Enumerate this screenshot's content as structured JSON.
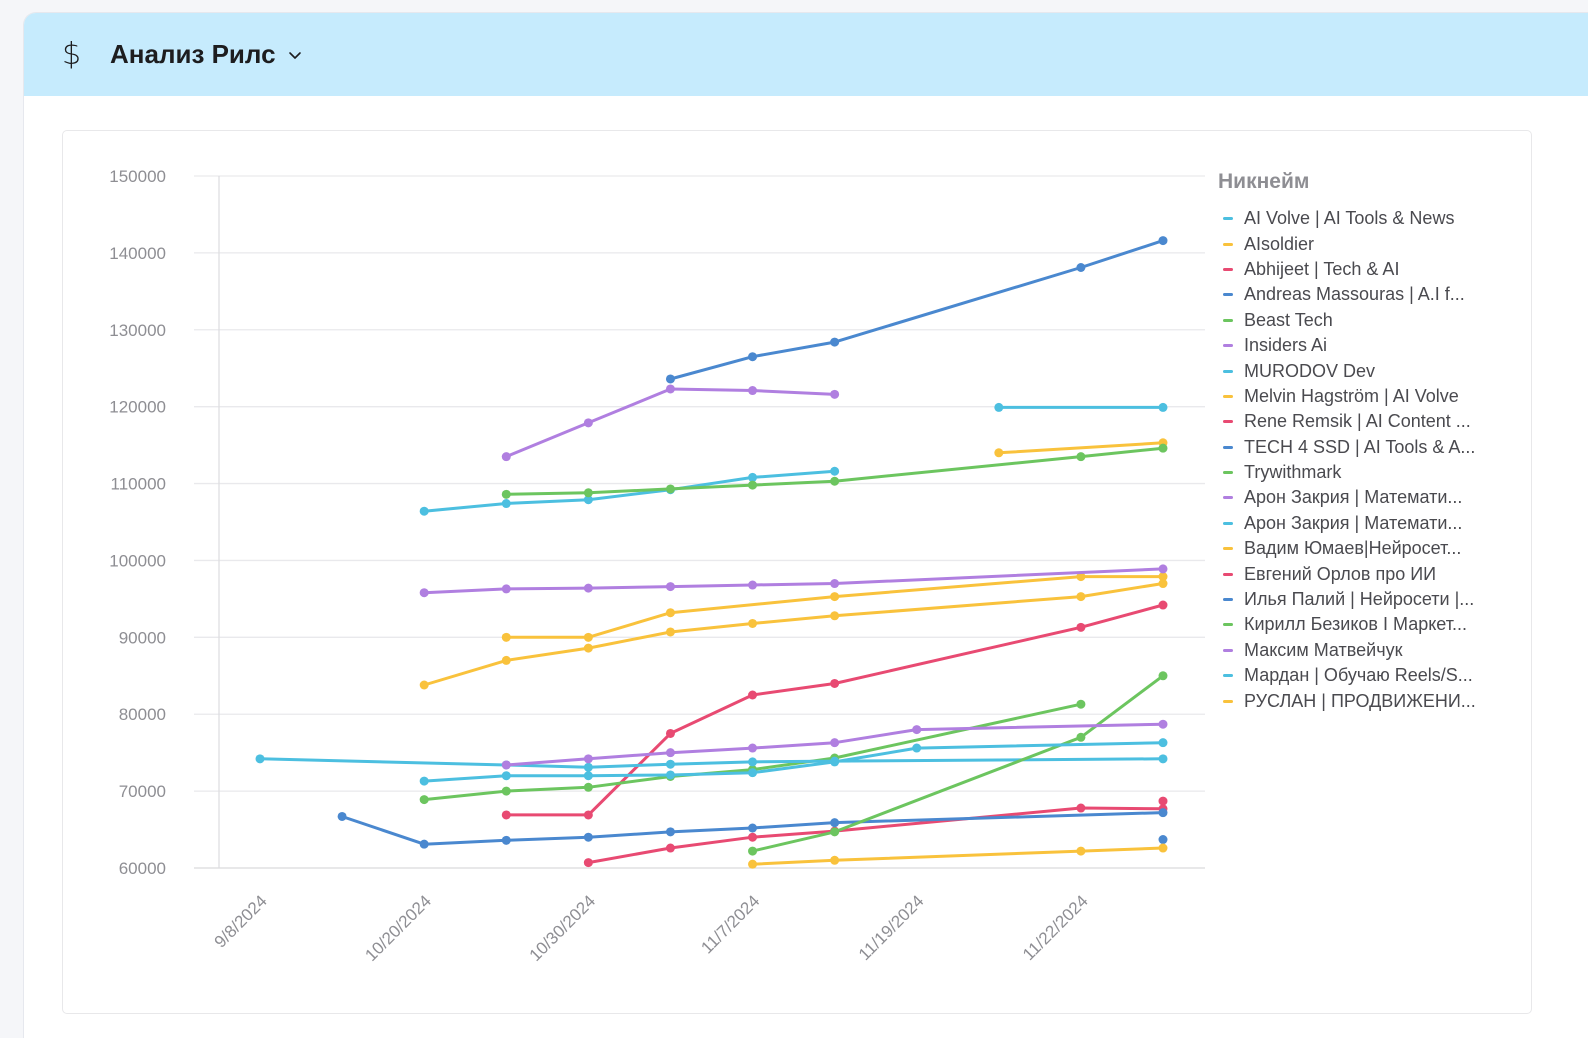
{
  "header": {
    "icon": "dollar-icon",
    "title": "Анализ Рилс",
    "dropdown_icon": "chevron-down-icon",
    "background": "#c6ebfd"
  },
  "chart_data": {
    "type": "line",
    "title": "",
    "xlabel": "",
    "ylabel": "",
    "ylim": [
      60000,
      150000
    ],
    "yticks": [
      "150000",
      "140000",
      "130000",
      "120000",
      "110000",
      "100000",
      "90000",
      "80000",
      "70000",
      "60000"
    ],
    "ytick_values": [
      150000,
      140000,
      130000,
      120000,
      110000,
      100000,
      90000,
      80000,
      70000,
      60000
    ],
    "categories": [
      "9/8/2024",
      "",
      "10/20/2024",
      "",
      "10/30/2024",
      "",
      "11/7/2024",
      "",
      "11/19/2024",
      "",
      "11/22/2024",
      ""
    ],
    "xtick_labels": [
      {
        "index": 0,
        "label": "9/8/2024"
      },
      {
        "index": 2,
        "label": "10/20/2024"
      },
      {
        "index": 4,
        "label": "10/30/2024"
      },
      {
        "index": 6,
        "label": "11/7/2024"
      },
      {
        "index": 8,
        "label": "11/19/2024"
      },
      {
        "index": 10,
        "label": "11/22/2024"
      }
    ],
    "grid": true,
    "legend_title": "Никнейм",
    "legend_position": "right",
    "series": [
      {
        "name": "AI Volve | AI Tools & News",
        "color": "#4cbfe0",
        "values": [
          null,
          null,
          106400,
          107400,
          107900,
          109200,
          110800,
          111600,
          null,
          null,
          null,
          null
        ]
      },
      {
        "name": "AIsoldier",
        "color": "#f9c23c",
        "values": [
          null,
          null,
          null,
          null,
          null,
          null,
          null,
          null,
          null,
          114000,
          null,
          115300
        ]
      },
      {
        "name": "Abhijeet | Tech & AI",
        "color": "#e84a72",
        "values": [
          null,
          null,
          null,
          66900,
          66900,
          77500,
          82500,
          84000,
          null,
          null,
          91300,
          94200
        ]
      },
      {
        "name": "Andreas Massouras | A.I f...",
        "color": "#4a88cf",
        "values": [
          null,
          null,
          null,
          null,
          null,
          123600,
          126500,
          128400,
          null,
          null,
          138100,
          141600
        ]
      },
      {
        "name": "Beast Tech",
        "color": "#6cc55f",
        "values": [
          null,
          null,
          null,
          108600,
          108800,
          109300,
          109800,
          110300,
          null,
          null,
          113500,
          114600
        ]
      },
      {
        "name": "Insiders Ai",
        "color": "#b07fe0",
        "values": [
          null,
          null,
          null,
          113500,
          117900,
          122300,
          122100,
          121600,
          null,
          null,
          null,
          null
        ]
      },
      {
        "name": "MURODOV Dev",
        "color": "#4cbfe0",
        "values": [
          null,
          null,
          null,
          null,
          null,
          null,
          null,
          null,
          null,
          119900,
          null,
          119900
        ]
      },
      {
        "name": "Melvin Hagström | AI Volve",
        "color": "#f9c23c",
        "values": [
          null,
          null,
          null,
          90000,
          90000,
          93200,
          null,
          95300,
          null,
          null,
          97900,
          97900
        ]
      },
      {
        "name": "Rene Remsik | AI Content ...",
        "color": "#e84a72",
        "values": [
          null,
          null,
          null,
          null,
          60700,
          62600,
          64000,
          64800,
          null,
          null,
          67800,
          67700
        ]
      },
      {
        "name": "TECH 4 SSD | AI Tools & A...",
        "color": "#4a88cf",
        "values": [
          null,
          66700,
          63100,
          63600,
          64000,
          64700,
          65200,
          65900,
          null,
          null,
          null,
          67200
        ]
      },
      {
        "name": "Trywithmark",
        "color": "#6cc55f",
        "values": [
          null,
          null,
          68900,
          70000,
          70500,
          71900,
          72800,
          74300,
          null,
          null,
          81300,
          null
        ]
      },
      {
        "name": "Арон Закрия | Математи...",
        "color": "#b07fe0",
        "values": [
          null,
          null,
          95800,
          96300,
          96400,
          96600,
          96800,
          97000,
          null,
          null,
          null,
          98900
        ]
      },
      {
        "name": "Арон Закрия | Математи...",
        "color": "#4cbfe0",
        "values": [
          74200,
          null,
          null,
          73400,
          73100,
          73500,
          73800,
          73900,
          null,
          null,
          null,
          74200
        ]
      },
      {
        "name": "Вадим Юмаев|Нейросет...",
        "color": "#f9c23c",
        "values": [
          null,
          null,
          83800,
          87000,
          88600,
          90700,
          91800,
          92800,
          null,
          null,
          95300,
          97000
        ]
      },
      {
        "name": "Евгений Орлов про ИИ",
        "color": "#e84a72",
        "values": [
          null,
          null,
          null,
          null,
          null,
          null,
          null,
          null,
          null,
          null,
          null,
          68700
        ]
      },
      {
        "name": "Илья Палий | Нейросети |...",
        "color": "#4a88cf",
        "values": [
          null,
          null,
          null,
          null,
          null,
          null,
          null,
          null,
          null,
          null,
          null,
          63700
        ]
      },
      {
        "name": "Кирилл Безиков I Маркет...",
        "color": "#6cc55f",
        "values": [
          null,
          null,
          null,
          null,
          null,
          null,
          62200,
          64700,
          null,
          null,
          77000,
          85000
        ]
      },
      {
        "name": "Максим Матвейчук",
        "color": "#b07fe0",
        "values": [
          null,
          null,
          null,
          73400,
          74200,
          75000,
          75600,
          76300,
          78000,
          null,
          null,
          78700
        ]
      },
      {
        "name": "Мардан | Обучаю Reels/S...",
        "color": "#4cbfe0",
        "values": [
          null,
          null,
          71300,
          72000,
          72000,
          72100,
          72400,
          73800,
          75600,
          null,
          null,
          76300
        ]
      },
      {
        "name": "РУСЛАН | ПРОДВИЖЕНИ...",
        "color": "#f9c23c",
        "values": [
          null,
          null,
          null,
          null,
          null,
          null,
          60500,
          61000,
          null,
          null,
          62200,
          62600
        ]
      }
    ]
  }
}
